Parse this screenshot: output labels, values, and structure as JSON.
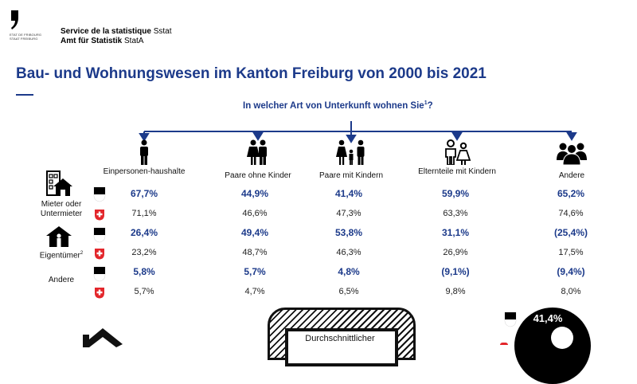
{
  "header": {
    "logo_line1": "ETAT DE FRIBOURG",
    "logo_line2": "STAAT FREIBURG",
    "org_fr_bold": "Service de la statistique",
    "org_fr_abbr": "Sstat",
    "org_de_bold": "Amt für Statistik",
    "org_de_abbr": "StatA"
  },
  "title": "Bau- und Wohnungswesen im Kanton Freiburg von 2000 bis 2021",
  "question": {
    "text": "In welcher Art von Unterkunft wohnen Sie",
    "footnote": "1",
    "suffix": "?"
  },
  "colors": {
    "accent": "#1c3a8a",
    "swiss_red": "#e3262b"
  },
  "table": {
    "columns": [
      {
        "label": "Einpersonen-haushalte",
        "icon": "single-person-icon"
      },
      {
        "label": "Paare ohne Kinder",
        "icon": "couple-icon"
      },
      {
        "label": "Paare mit Kindern",
        "icon": "family-icon"
      },
      {
        "label": "Elternteile mit Kindern",
        "icon": "parent-child-icon"
      },
      {
        "label": "Andere",
        "icon": "group-icon"
      }
    ],
    "rows": [
      {
        "label": "Mieter oder Untermieter",
        "icon": "apartment-house-icon",
        "fribourg": [
          "67,7%",
          "44,9%",
          "41,4%",
          "59,9%",
          "65,2%"
        ],
        "schweiz": [
          "71,1%",
          "46,6%",
          "47,3%",
          "63,3%",
          "74,6%"
        ]
      },
      {
        "label": "Eigentümer",
        "footnote": "2",
        "icon": "owner-house-icon",
        "fribourg": [
          "26,4%",
          "49,4%",
          "53,8%",
          "31,1%",
          "(25,4%)"
        ],
        "schweiz": [
          "23,2%",
          "48,7%",
          "46,3%",
          "26,9%",
          "17,5%"
        ]
      },
      {
        "label": "Andere",
        "icon": "",
        "fribourg": [
          "5,8%",
          "5,7%",
          "4,8%",
          "(9,1%)",
          "(9,4%)"
        ],
        "schweiz": [
          "5,7%",
          "4,7%",
          "6,5%",
          "9,8%",
          "8,0%"
        ]
      }
    ],
    "legend": {
      "fribourg": "fribourg-flag-icon",
      "schweiz": "swiss-flag-icon"
    }
  },
  "bottom": {
    "box_label": "Durchschnittlicher",
    "donut_value": "41,4%"
  }
}
